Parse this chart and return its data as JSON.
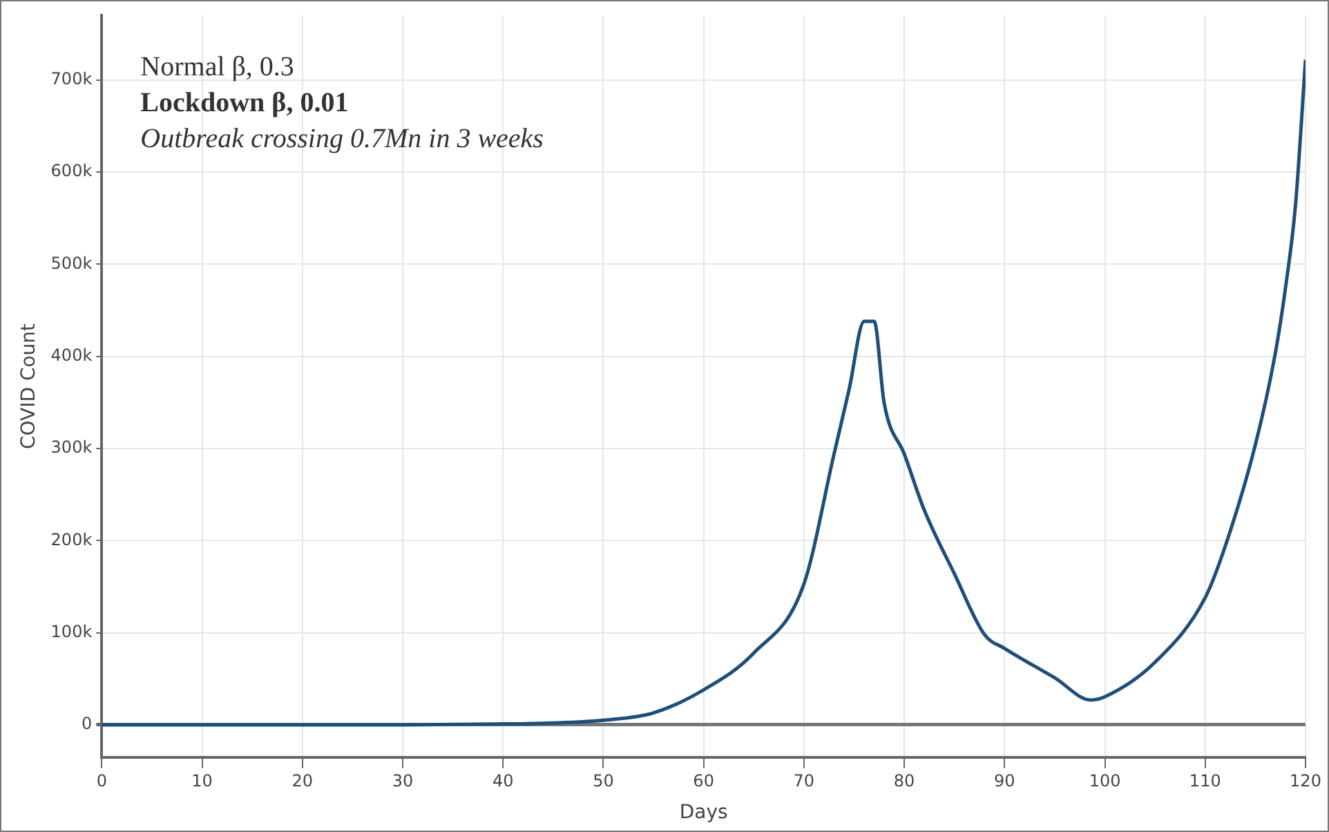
{
  "chart_data": {
    "type": "line",
    "xlabel": "Days",
    "ylabel": "COVID Count",
    "annotations": [
      "Normal β, 0.3",
      "Lockdown β, 0.01",
      "Outbreak crossing 0.7Mn in 3 weeks"
    ],
    "series": [
      {
        "color": "#1f4e79",
        "x": [
          0,
          10,
          20,
          30,
          40,
          45,
          50,
          55,
          60,
          65,
          70,
          73,
          74.5,
          76,
          77,
          78,
          80,
          82,
          85,
          88,
          90,
          95,
          98.6,
          100,
          105,
          110,
          112,
          115,
          117,
          118,
          119,
          120
        ],
        "values": [
          0,
          0,
          0,
          0,
          1000,
          2000,
          5000,
          13000,
          38000,
          78000,
          153000,
          294000,
          364000,
          438000,
          438000,
          349000,
          294000,
          233000,
          164000,
          98000,
          83000,
          51000,
          27000,
          30500,
          68000,
          138000,
          194000,
          304000,
          404000,
          474000,
          564000,
          722000
        ]
      }
    ],
    "xlim": [
      0,
      120
    ],
    "xticks": [
      0,
      10,
      20,
      30,
      40,
      50,
      60,
      70,
      80,
      90,
      100,
      110,
      120
    ],
    "ylim": [
      -35000,
      770000
    ],
    "yticks": [
      {
        "value": 0,
        "label": "0"
      },
      {
        "value": 100000,
        "label": "100k"
      },
      {
        "value": 200000,
        "label": "200k"
      },
      {
        "value": 300000,
        "label": "300k"
      },
      {
        "value": 400000,
        "label": "400k"
      },
      {
        "value": 500000,
        "label": "500k"
      },
      {
        "value": 600000,
        "label": "600k"
      },
      {
        "value": 700000,
        "label": "700k"
      }
    ],
    "grid": true,
    "legend": false,
    "marker": "none",
    "line_style": "solid"
  }
}
